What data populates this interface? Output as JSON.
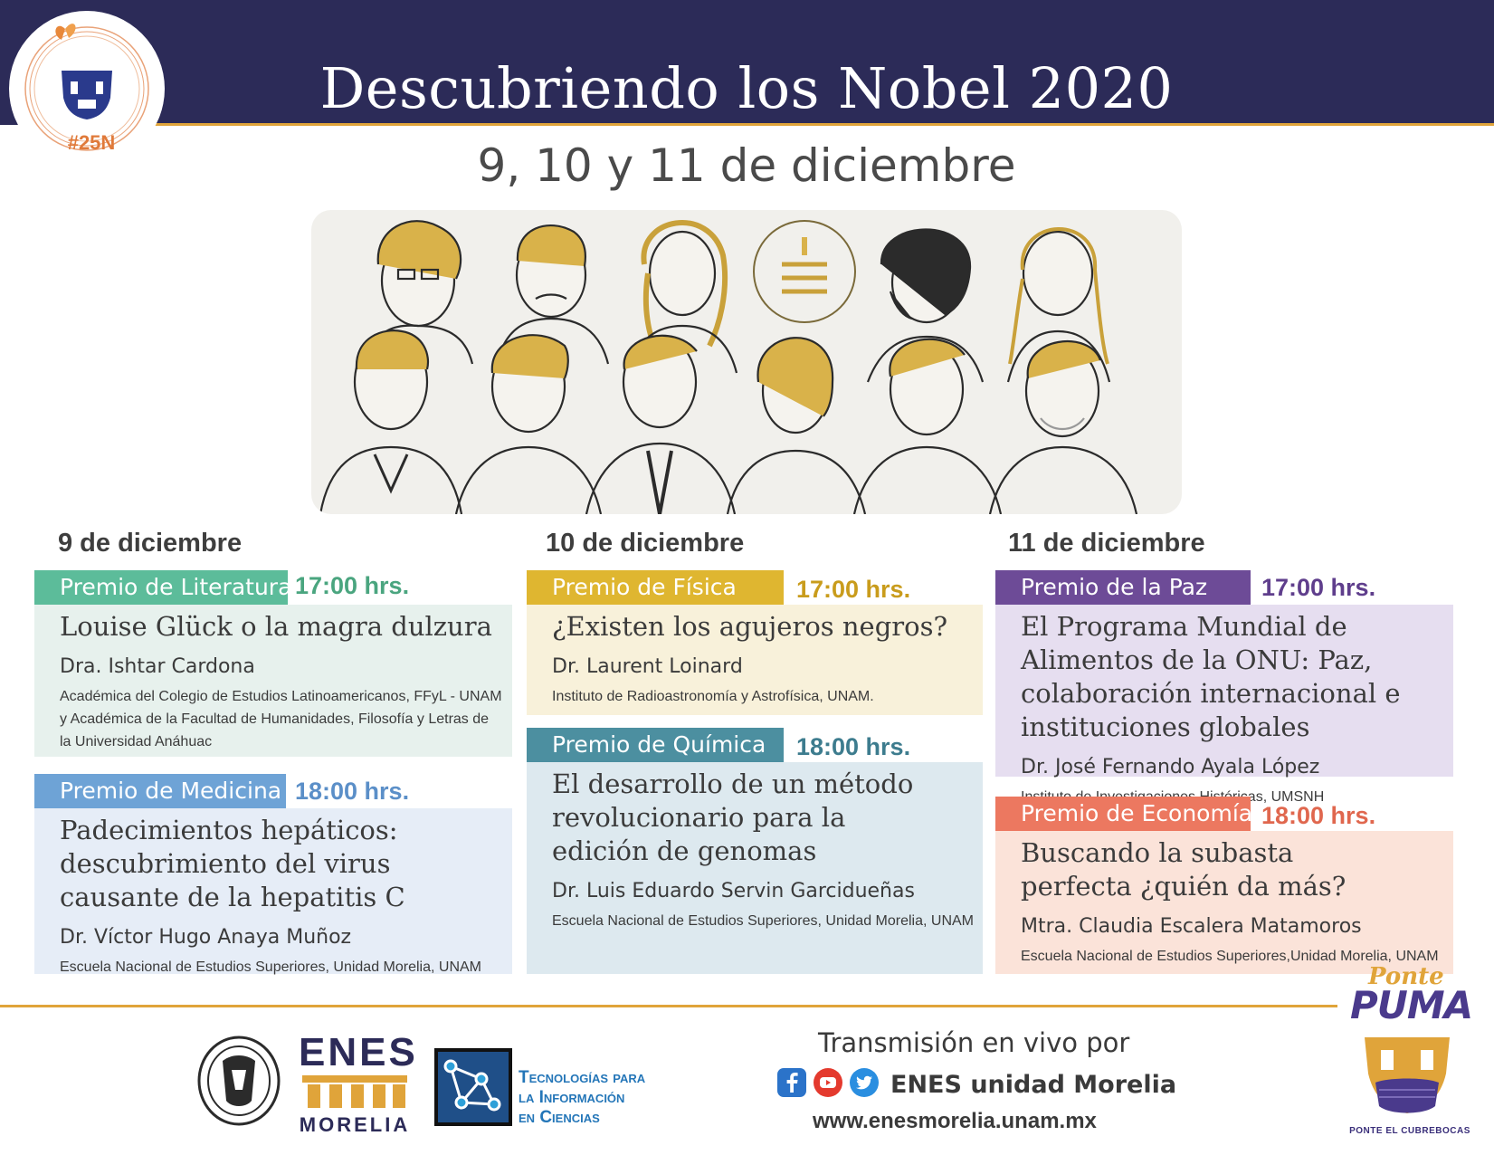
{
  "header": {
    "title": "Descubriendo los Nobel 2020",
    "hashtag": "#25N",
    "dates": "9, 10 y 11 de diciembre"
  },
  "colors": {
    "navy": "#2c2b58",
    "gold_line": "#e0a43a",
    "literatura": "#5cbc9a",
    "fisica": "#dfb630",
    "medicina": "#6ea3d6",
    "quimica": "#4c8fa0",
    "paz": "#6d4b97",
    "economia": "#ec7860"
  },
  "days": [
    {
      "label": "9 de diciembre",
      "events": [
        {
          "prize": "Premio de Literatura",
          "time": "17:00 hrs.",
          "title": "Louise Glück o la magra dulzura",
          "speaker": "Dra. Ishtar Cardona",
          "affiliation": "Académica del Colegio de Estudios Latinoamericanos, FFyL - UNAM y Académica de la Facultad de Humanidades, Filosofía y Letras de la Universidad Anáhuac"
        },
        {
          "prize": "Premio de Medicina",
          "time": "18:00 hrs.",
          "title": "Padecimientos hepáticos: descubrimiento del virus causante de la hepatitis C",
          "speaker": "Dr. Víctor Hugo Anaya Muñoz",
          "affiliation": "Escuela Nacional de Estudios Superiores, Unidad Morelia, UNAM"
        }
      ]
    },
    {
      "label": "10 de diciembre",
      "events": [
        {
          "prize": "Premio de Física",
          "time": "17:00 hrs.",
          "title": "¿Existen los agujeros negros?",
          "speaker": "Dr. Laurent Loinard",
          "affiliation": "Instituto de Radioastronomía y Astrofísica, UNAM."
        },
        {
          "prize": "Premio de Química",
          "time": "18:00 hrs.",
          "title": "El desarrollo de un método revolucionario para la edición de genomas",
          "speaker": "Dr. Luis Eduardo Servin Garcidueñas",
          "affiliation": "Escuela Nacional de Estudios Superiores, Unidad Morelia, UNAM"
        }
      ]
    },
    {
      "label": "11 de diciembre",
      "events": [
        {
          "prize": "Premio de la Paz",
          "time": "17:00 hrs.",
          "title": "El Programa Mundial de Alimentos de la ONU: Paz, colaboración internacional e instituciones globales",
          "speaker": "Dr. José Fernando Ayala López",
          "affiliation": "Instituto de Investigaciones Históricas, UMSNH"
        },
        {
          "prize": "Premio de Economía",
          "time": "18:00 hrs.",
          "title": "Buscando la subasta perfecta ¿quién da más?",
          "speaker": "Mtra. Claudia Escalera Matamoros",
          "affiliation": "Escuela Nacional de Estudios Superiores,Unidad Morelia, UNAM"
        }
      ]
    }
  ],
  "footer": {
    "enes_top": "ENES",
    "enes_bottom": "MORELIA",
    "tic_line1": "Tecnologías para",
    "tic_line2": "la Información",
    "tic_line3": "en Ciencias",
    "stream_label": "Transmisión en vivo por",
    "social_name": "ENES unidad Morelia",
    "website": "www.enesmorelia.unam.mx",
    "ponte": "Ponte",
    "puma": "PUMA",
    "cubrebocas": "PONTE EL CUBREBOCAS"
  }
}
